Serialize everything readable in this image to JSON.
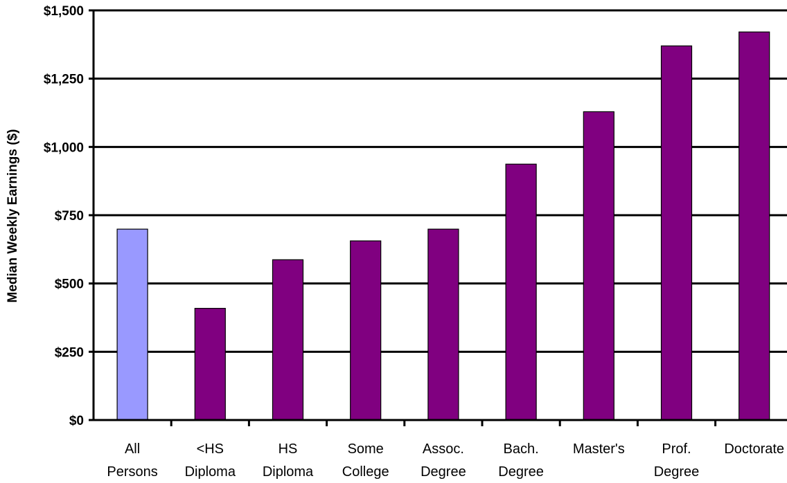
{
  "chart_data": {
    "type": "bar",
    "title": "",
    "xlabel": "",
    "ylabel": "Median Weekly Earnings ($)",
    "ylim": [
      0,
      1500
    ],
    "yticks": [
      0,
      250,
      500,
      750,
      1000,
      1250,
      1500
    ],
    "ytick_labels": [
      "$0",
      "$250",
      "$500",
      "$750",
      "$1,000",
      "$1,250",
      "$1,500"
    ],
    "grid": true,
    "legend": "none",
    "categories": [
      [
        "All",
        "Persons"
      ],
      [
        "<HS",
        "Diploma"
      ],
      [
        "HS",
        "Diploma"
      ],
      [
        "Some",
        "College"
      ],
      [
        "Assoc.",
        "Degree"
      ],
      [
        "Bach.",
        "Degree"
      ],
      [
        "Master's"
      ],
      [
        "Prof.",
        "Degree"
      ],
      [
        "Doctorate"
      ]
    ],
    "values": [
      699,
      409,
      587,
      656,
      699,
      937,
      1129,
      1370,
      1421
    ],
    "colors": [
      "#9999FF",
      "#800080",
      "#800080",
      "#800080",
      "#800080",
      "#800080",
      "#800080",
      "#800080",
      "#800080"
    ]
  }
}
